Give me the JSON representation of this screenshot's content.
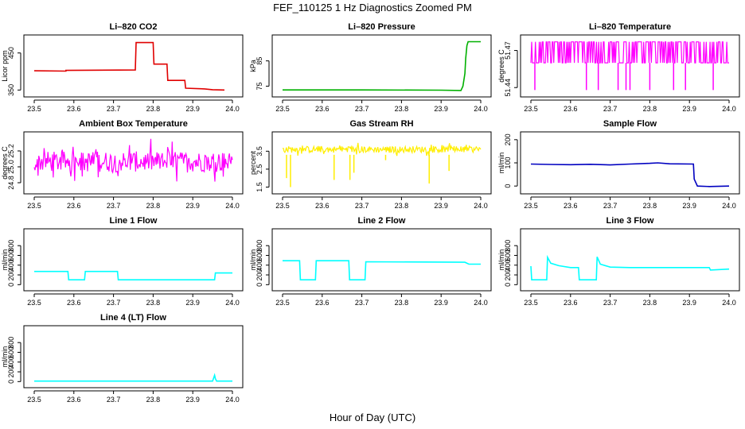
{
  "page": {
    "title": "FEF_110125  1 Hz Diagnostics Zoomed PM",
    "xlabel": "Hour of Day (UTC)"
  },
  "chart_data": [
    {
      "type": "line",
      "title": "Li–820 CO2",
      "ylabel": "Licor ppm",
      "xlim": [
        23.5,
        24.0
      ],
      "ylim": [
        340,
        490
      ],
      "xticks": [
        "23.5",
        "23.6",
        "23.7",
        "23.8",
        "23.9",
        "24.0"
      ],
      "yticks": [
        {
          "value": 350,
          "label": "350"
        },
        {
          "value": 450,
          "label": "450"
        }
      ],
      "color": "#e00000",
      "style": "steps",
      "series": [
        {
          "x": [
            23.5,
            23.58,
            23.58,
            23.755,
            23.757,
            23.8,
            23.802,
            23.835,
            23.837,
            23.88,
            23.882,
            23.93,
            23.95,
            23.98
          ],
          "y": [
            402,
            401,
            403,
            404,
            478,
            478,
            420,
            420,
            376,
            376,
            355,
            353,
            351,
            350
          ]
        }
      ]
    },
    {
      "type": "line",
      "title": "Li–820 Pressure",
      "ylabel": "kPa",
      "xlim": [
        23.5,
        24.0
      ],
      "ylim": [
        72,
        94
      ],
      "xticks": [
        "23.5",
        "23.6",
        "23.7",
        "23.8",
        "23.9",
        "24.0"
      ],
      "yticks": [
        {
          "value": 75,
          "label": "75"
        },
        {
          "value": 85,
          "label": "85"
        }
      ],
      "color": "#00b000",
      "style": "line",
      "series": [
        {
          "x": [
            23.5,
            23.7,
            23.9,
            23.95,
            23.955,
            23.96,
            23.962,
            23.965,
            23.968,
            24.0
          ],
          "y": [
            73.5,
            73.5,
            73.4,
            73.3,
            75,
            80,
            86,
            91,
            92.6,
            92.6
          ]
        }
      ]
    },
    {
      "type": "line",
      "title": "Li–820 Temperature",
      "ylabel": "degrees C",
      "xlim": [
        23.5,
        24.0
      ],
      "ylim": [
        51.435,
        51.48
      ],
      "xticks": [
        "23.5",
        "23.6",
        "23.7",
        "23.8",
        "23.9",
        "24.0"
      ],
      "yticks": [
        {
          "value": 51.44,
          "label": "51.44"
        },
        {
          "value": 51.47,
          "label": "51.47"
        }
      ],
      "color": "#ff00ff",
      "style": "flicker",
      "series": [
        {
          "x": [
            23.5,
            24.0
          ],
          "y": [
            51.46,
            51.46
          ],
          "band": [
            51.46,
            51.477
          ],
          "dips_x": [
            23.51,
            23.64,
            23.67,
            23.72,
            23.74,
            23.75,
            23.8,
            23.86,
            23.89,
            23.96
          ],
          "dip_to": 51.438
        }
      ]
    },
    {
      "type": "line",
      "title": "Ambient Box Temperature",
      "ylabel": "degrees C",
      "xlim": [
        23.5,
        24.0
      ],
      "ylim": [
        24.7,
        25.4
      ],
      "xticks": [
        "23.5",
        "23.6",
        "23.7",
        "23.8",
        "23.9",
        "24.0"
      ],
      "yticks": [
        {
          "value": 24.8,
          "label": "24.8"
        },
        {
          "value": 25.0,
          "label": "25.0"
        },
        {
          "value": 25.2,
          "label": "25.2"
        }
      ],
      "color": "#ff00ff",
      "style": "noise",
      "series": [
        {
          "x": [
            23.5,
            24.0
          ],
          "y": [
            25.05,
            25.05
          ],
          "band": [
            24.85,
            25.28
          ]
        }
      ]
    },
    {
      "type": "line",
      "title": "Gas Stream RH",
      "ylabel": "percent",
      "xlim": [
        23.5,
        24.0
      ],
      "ylim": [
        1.3,
        4.4
      ],
      "xticks": [
        "23.5",
        "23.6",
        "23.7",
        "23.8",
        "23.9",
        "24.0"
      ],
      "yticks": [
        {
          "value": 1.5,
          "label": "1.5"
        },
        {
          "value": 2.5,
          "label": "2.5"
        },
        {
          "value": 3.5,
          "label": "3.5"
        }
      ],
      "color": "#ffee00",
      "style": "noise",
      "series": [
        {
          "x": [
            23.5,
            24.0
          ],
          "y": [
            3.65,
            3.65
          ],
          "band": [
            3.3,
            3.9
          ],
          "dips_x": [
            23.51,
            23.52,
            23.63,
            23.67,
            23.68,
            23.76,
            23.87,
            23.92
          ],
          "dips_y": [
            2.0,
            1.5,
            1.9,
            1.9,
            2.3,
            3.0,
            1.7,
            2.4
          ]
        }
      ]
    },
    {
      "type": "line",
      "title": "Sample Flow",
      "ylabel": "ml/min",
      "xlim": [
        23.5,
        24.0
      ],
      "ylim": [
        -20,
        220
      ],
      "xticks": [
        "23.5",
        "23.6",
        "23.7",
        "23.8",
        "23.9",
        "24.0"
      ],
      "yticks": [
        {
          "value": 0,
          "label": "0"
        },
        {
          "value": 100,
          "label": "100"
        },
        {
          "value": 200,
          "label": "200"
        }
      ],
      "color": "#0000c0",
      "style": "line",
      "series": [
        {
          "x": [
            23.5,
            23.55,
            23.6,
            23.65,
            23.7,
            23.75,
            23.8,
            23.82,
            23.85,
            23.91,
            23.912,
            23.92,
            23.95,
            24.0
          ],
          "y": [
            95,
            93,
            92,
            94,
            91,
            95,
            98,
            100,
            96,
            95,
            30,
            0,
            -2,
            0
          ]
        }
      ]
    },
    {
      "type": "line",
      "title": "Line 1 Flow",
      "ylabel": "ml/min",
      "xlim": [
        23.5,
        24.0
      ],
      "ylim": [
        -60,
        1080
      ],
      "xticks": [
        "23.5",
        "23.6",
        "23.7",
        "23.8",
        "23.9",
        "24.0"
      ],
      "yticks": [
        {
          "value": 0,
          "label": "0"
        },
        {
          "value": 200,
          "label": "200"
        },
        {
          "value": 400,
          "label": "400"
        },
        {
          "value": 600,
          "label": "600"
        },
        {
          "value": 800,
          "label": "800"
        }
      ],
      "color": "#00ffff",
      "style": "steps",
      "series": [
        {
          "x": [
            23.5,
            23.585,
            23.587,
            23.627,
            23.629,
            23.71,
            23.712,
            23.955,
            23.957,
            24.0
          ],
          "y": [
            270,
            270,
            100,
            100,
            270,
            270,
            100,
            100,
            240,
            240
          ]
        }
      ]
    },
    {
      "type": "line",
      "title": "Line 2 Flow",
      "ylabel": "ml/min",
      "xlim": [
        23.5,
        24.0
      ],
      "ylim": [
        -60,
        1080
      ],
      "xticks": [
        "23.5",
        "23.6",
        "23.7",
        "23.8",
        "23.9",
        "24.0"
      ],
      "yticks": [
        {
          "value": 0,
          "label": "0"
        },
        {
          "value": 200,
          "label": "200"
        },
        {
          "value": 400,
          "label": "400"
        },
        {
          "value": 600,
          "label": "600"
        },
        {
          "value": 800,
          "label": "800"
        }
      ],
      "color": "#00ffff",
      "style": "steps",
      "series": [
        {
          "x": [
            23.5,
            23.543,
            23.545,
            23.583,
            23.585,
            23.667,
            23.669,
            23.708,
            23.71,
            23.96,
            23.97,
            24.0
          ],
          "y": [
            490,
            490,
            100,
            100,
            490,
            490,
            100,
            100,
            470,
            460,
            420,
            420
          ]
        }
      ]
    },
    {
      "type": "line",
      "title": "Line 3 Flow",
      "ylabel": "ml/min",
      "xlim": [
        23.5,
        24.0
      ],
      "ylim": [
        -60,
        1080
      ],
      "xticks": [
        "23.5",
        "23.6",
        "23.7",
        "23.8",
        "23.9",
        "24.0"
      ],
      "yticks": [
        {
          "value": 0,
          "label": "0"
        },
        {
          "value": 200,
          "label": "200"
        },
        {
          "value": 400,
          "label": "400"
        },
        {
          "value": 600,
          "label": "600"
        },
        {
          "value": 800,
          "label": "800"
        }
      ],
      "color": "#00ffff",
      "style": "steps",
      "series": [
        {
          "x": [
            23.5,
            23.502,
            23.505,
            23.54,
            23.542,
            23.55,
            23.57,
            23.6,
            23.62,
            23.622,
            23.665,
            23.667,
            23.675,
            23.7,
            23.75,
            23.95,
            23.953,
            24.0
          ],
          "y": [
            380,
            100,
            100,
            100,
            560,
            440,
            390,
            350,
            350,
            100,
            100,
            570,
            420,
            360,
            350,
            350,
            300,
            320
          ]
        }
      ]
    },
    {
      "type": "line",
      "title": "Line 4 (LT) Flow",
      "ylabel": "ml/min",
      "xlim": [
        23.5,
        24.0
      ],
      "ylim": [
        -60,
        1080
      ],
      "xticks": [
        "23.5",
        "23.6",
        "23.7",
        "23.8",
        "23.9",
        "24.0"
      ],
      "yticks": [
        {
          "value": 0,
          "label": "0"
        },
        {
          "value": 200,
          "label": "200"
        },
        {
          "value": 400,
          "label": "400"
        },
        {
          "value": 600,
          "label": "600"
        },
        {
          "value": 800,
          "label": "800"
        }
      ],
      "color": "#00ffff",
      "style": "line",
      "series": [
        {
          "x": [
            23.5,
            23.95,
            23.955,
            23.957,
            23.96,
            24.0
          ],
          "y": [
            10,
            10,
            130,
            60,
            10,
            10
          ]
        }
      ]
    }
  ]
}
